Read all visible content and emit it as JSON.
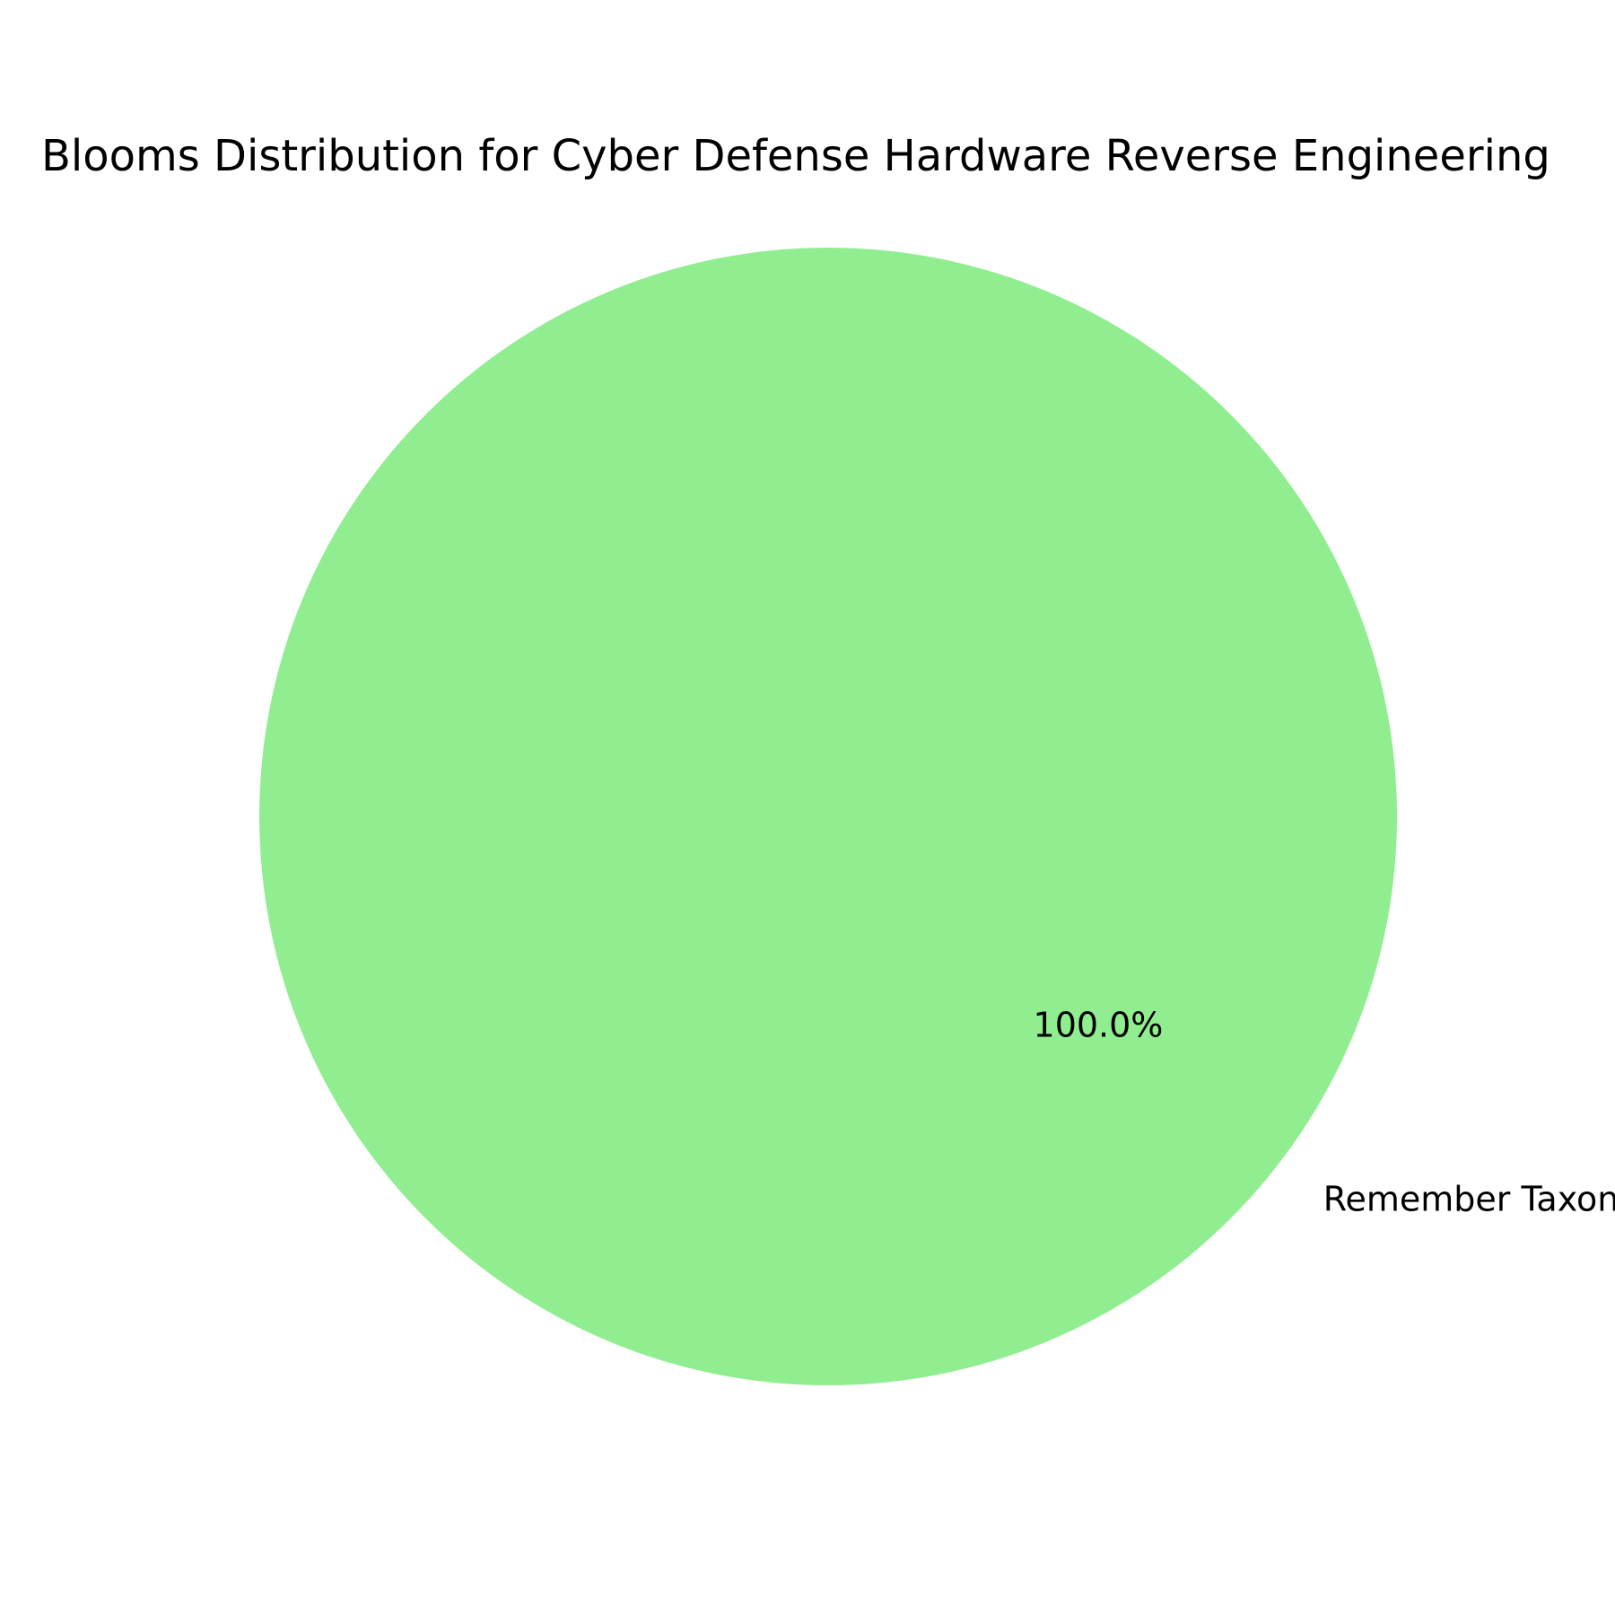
{
  "chart_data": {
    "type": "pie",
    "title": "Blooms Distribution for Cyber Defense Hardware Reverse Engineering",
    "labels": [
      "Remember Taxonomy"
    ],
    "values": [
      100.0
    ],
    "autopct_labels": [
      "100.0%"
    ],
    "colors": [
      "#90ee90"
    ],
    "legend": "none"
  }
}
